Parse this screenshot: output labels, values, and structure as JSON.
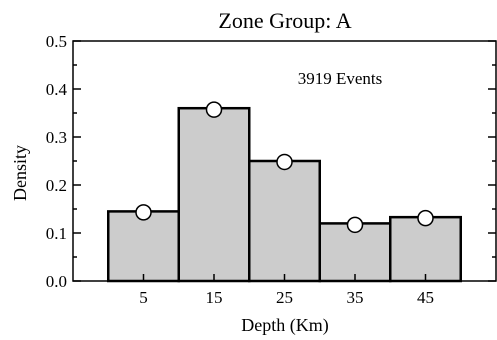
{
  "chart_data": {
    "type": "bar",
    "title": "Zone Group: A",
    "xlabel": "Depth (Km)",
    "ylabel": "Density",
    "annotation": "3919 Events",
    "categories": [
      "5",
      "15",
      "25",
      "35",
      "45"
    ],
    "x": [
      5,
      15,
      25,
      35,
      45
    ],
    "bin_width": 10,
    "values": [
      0.145,
      0.36,
      0.25,
      0.12,
      0.133
    ],
    "markers": [
      0.143,
      0.357,
      0.248,
      0.117,
      0.131
    ],
    "xlim": [
      -5,
      55
    ],
    "ylim": [
      0,
      0.5
    ],
    "yticks": [
      0.0,
      0.1,
      0.2,
      0.3,
      0.4,
      0.5
    ],
    "ytick_labels": [
      "0.0",
      "0.1",
      "0.2",
      "0.3",
      "0.4",
      "0.5"
    ],
    "grid": false,
    "legend": "none",
    "colors": {
      "bar_fill": "#cccccc",
      "bar_edge": "#000000",
      "marker_fill": "#ffffff"
    }
  }
}
